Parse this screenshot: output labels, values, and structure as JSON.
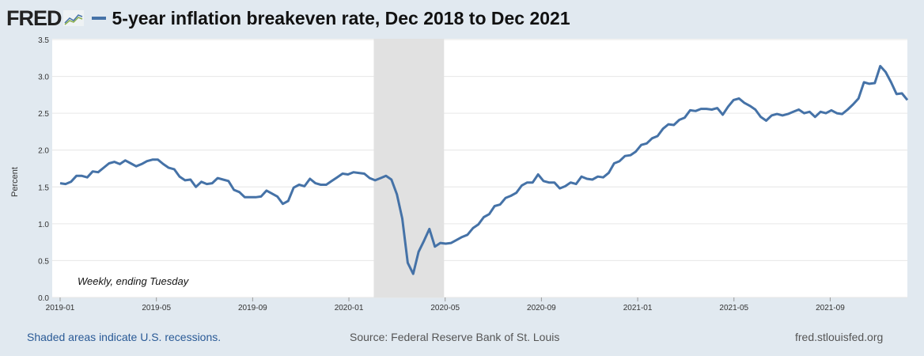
{
  "header": {
    "logo": "FRED",
    "title": "5-year inflation breakeven rate, Dec 2018 to Dec 2021"
  },
  "footer": {
    "recession_note": "Shaded areas indicate U.S. recessions.",
    "source": "Source: Federal Reserve Bank of St. Louis",
    "url": "fred.stlouisfed.org"
  },
  "colors": {
    "line": "#4572a7",
    "recession": "#e1e1e1"
  },
  "chart_data": {
    "type": "line",
    "title": "5-year inflation breakeven rate, Dec 2018 to Dec 2021",
    "ylabel": "Percent",
    "xlabel": "",
    "annotation": "Weekly, ending Tuesday",
    "ylim": [
      0,
      3.5
    ],
    "yticks": [
      "0.0",
      "0.5",
      "1.0",
      "1.5",
      "2.0",
      "2.5",
      "3.0",
      "3.5"
    ],
    "xticks": [
      "2019-01",
      "2019-05",
      "2019-09",
      "2020-01",
      "2020-05",
      "2020-09",
      "2021-01",
      "2021-05",
      "2021-09"
    ],
    "recession": [
      "2020-02",
      "2020-04"
    ],
    "series": [
      {
        "name": "5-year inflation breakeven rate",
        "values": [
          1.55,
          1.54,
          1.57,
          1.65,
          1.65,
          1.63,
          1.71,
          1.7,
          1.76,
          1.82,
          1.84,
          1.81,
          1.86,
          1.82,
          1.78,
          1.81,
          1.85,
          1.87,
          1.87,
          1.81,
          1.76,
          1.74,
          1.64,
          1.59,
          1.6,
          1.5,
          1.57,
          1.54,
          1.55,
          1.62,
          1.6,
          1.58,
          1.46,
          1.43,
          1.36,
          1.36,
          1.36,
          1.37,
          1.45,
          1.41,
          1.37,
          1.27,
          1.31,
          1.49,
          1.53,
          1.51,
          1.61,
          1.55,
          1.53,
          1.53,
          1.58,
          1.63,
          1.68,
          1.67,
          1.7,
          1.69,
          1.68,
          1.62,
          1.59,
          1.62,
          1.65,
          1.6,
          1.4,
          1.07,
          0.47,
          0.32,
          0.62,
          0.77,
          0.93,
          0.69,
          0.74,
          0.73,
          0.74,
          0.78,
          0.82,
          0.85,
          0.94,
          0.99,
          1.09,
          1.13,
          1.24,
          1.26,
          1.35,
          1.38,
          1.42,
          1.52,
          1.56,
          1.56,
          1.67,
          1.58,
          1.56,
          1.56,
          1.48,
          1.51,
          1.56,
          1.54,
          1.64,
          1.61,
          1.6,
          1.64,
          1.63,
          1.69,
          1.82,
          1.85,
          1.92,
          1.93,
          1.98,
          2.07,
          2.09,
          2.16,
          2.19,
          2.29,
          2.35,
          2.34,
          2.41,
          2.44,
          2.54,
          2.53,
          2.56,
          2.56,
          2.55,
          2.57,
          2.48,
          2.59,
          2.68,
          2.7,
          2.64,
          2.6,
          2.55,
          2.45,
          2.4,
          2.47,
          2.49,
          2.47,
          2.49,
          2.52,
          2.55,
          2.5,
          2.52,
          2.45,
          2.52,
          2.5,
          2.54,
          2.5,
          2.49,
          2.55,
          2.62,
          2.7,
          2.92,
          2.9,
          2.91,
          3.14,
          3.06,
          2.92,
          2.76,
          2.77,
          2.68
        ]
      }
    ]
  }
}
